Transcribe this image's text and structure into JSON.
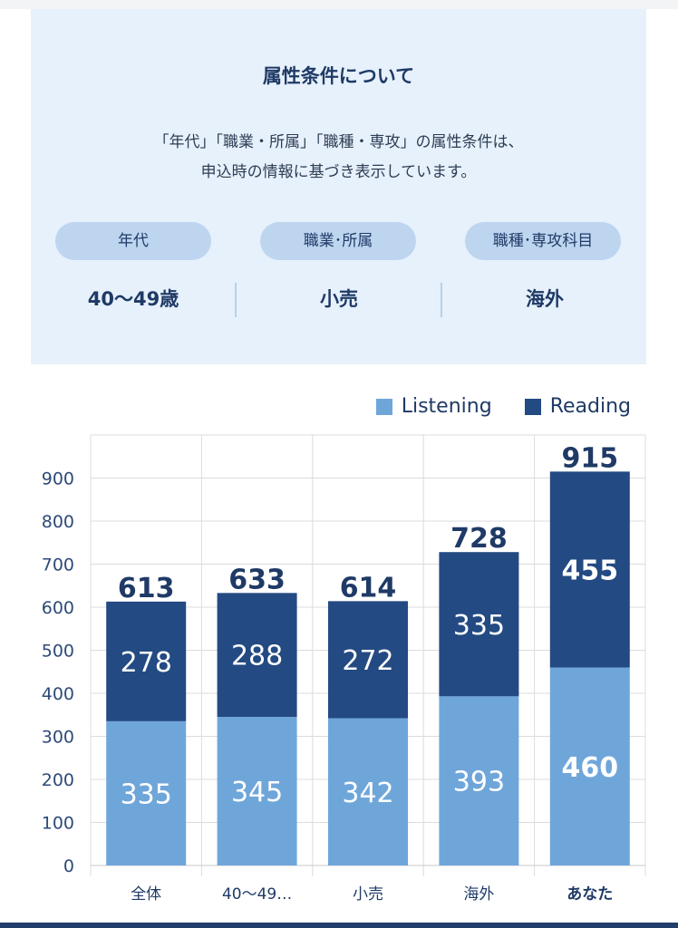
{
  "info": {
    "title": "属性条件について",
    "description_lines": [
      "「年代」「職業・所属」「職種・専攻」の属性条件は、",
      "申込時の情報に基づき表示しています。"
    ],
    "attributes": [
      {
        "label": "年代",
        "value": "40〜49歳"
      },
      {
        "label": "職業･所属",
        "value": "小売"
      },
      {
        "label": "職種･専攻科目",
        "value": "海外"
      }
    ],
    "colors": {
      "panel_bg": "#e7f1fb",
      "pill_bg": "#bed5f0",
      "text": "#1f3a66"
    }
  },
  "chart_data": {
    "type": "bar",
    "stacked": true,
    "categories": [
      "全体",
      "40〜49…",
      "小売",
      "海外",
      "あなた"
    ],
    "highlight_category": "あなた",
    "series": [
      {
        "name": "Listening",
        "values": [
          335,
          345,
          342,
          393,
          460
        ],
        "color": "#6fa6da"
      },
      {
        "name": "Reading",
        "values": [
          278,
          288,
          272,
          335,
          455
        ],
        "color": "#234a82"
      }
    ],
    "totals": [
      613,
      633,
      614,
      728,
      915
    ],
    "ylim": [
      0,
      1000
    ],
    "yticks": [
      0,
      100,
      200,
      300,
      400,
      500,
      600,
      700,
      800,
      900
    ],
    "grid": true,
    "legend_position": "top-right"
  }
}
